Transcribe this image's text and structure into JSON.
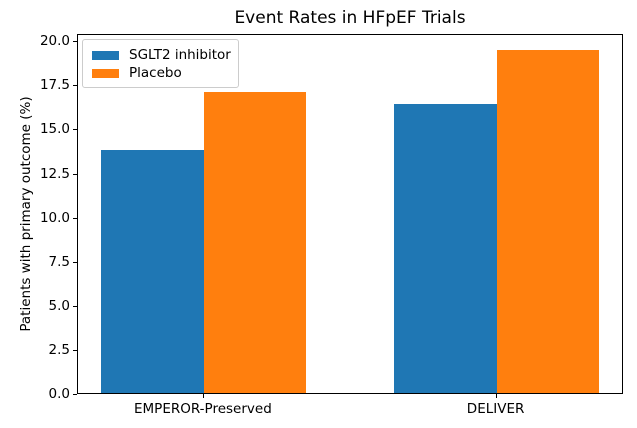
{
  "chart_data": {
    "type": "bar",
    "title": "Event Rates in HFpEF Trials",
    "xlabel": "",
    "ylabel": "Patients with primary outcome (%)",
    "categories": [
      "EMPEROR-Preserved",
      "DELIVER"
    ],
    "series": [
      {
        "name": "SGLT2 inhibitor",
        "color": "#1f77b4",
        "values": [
          13.8,
          16.4
        ]
      },
      {
        "name": "Placebo",
        "color": "#ff7f0e",
        "values": [
          17.1,
          19.5
        ]
      }
    ],
    "yticks": [
      0.0,
      2.5,
      5.0,
      7.5,
      10.0,
      12.5,
      15.0,
      17.5,
      20.0
    ],
    "ytick_labels": [
      "0.0",
      "2.5",
      "5.0",
      "7.5",
      "10.0",
      "12.5",
      "15.0",
      "17.5",
      "20.0"
    ],
    "ylim": [
      0,
      20.45
    ],
    "xlim": [
      -0.43,
      1.435
    ],
    "bar_width": 0.35,
    "grid": false,
    "legend_position": "upper left",
    "colors": {
      "spine": "#000000",
      "text": "#000000",
      "legend_border": "#cccccc",
      "background": "#ffffff"
    }
  }
}
